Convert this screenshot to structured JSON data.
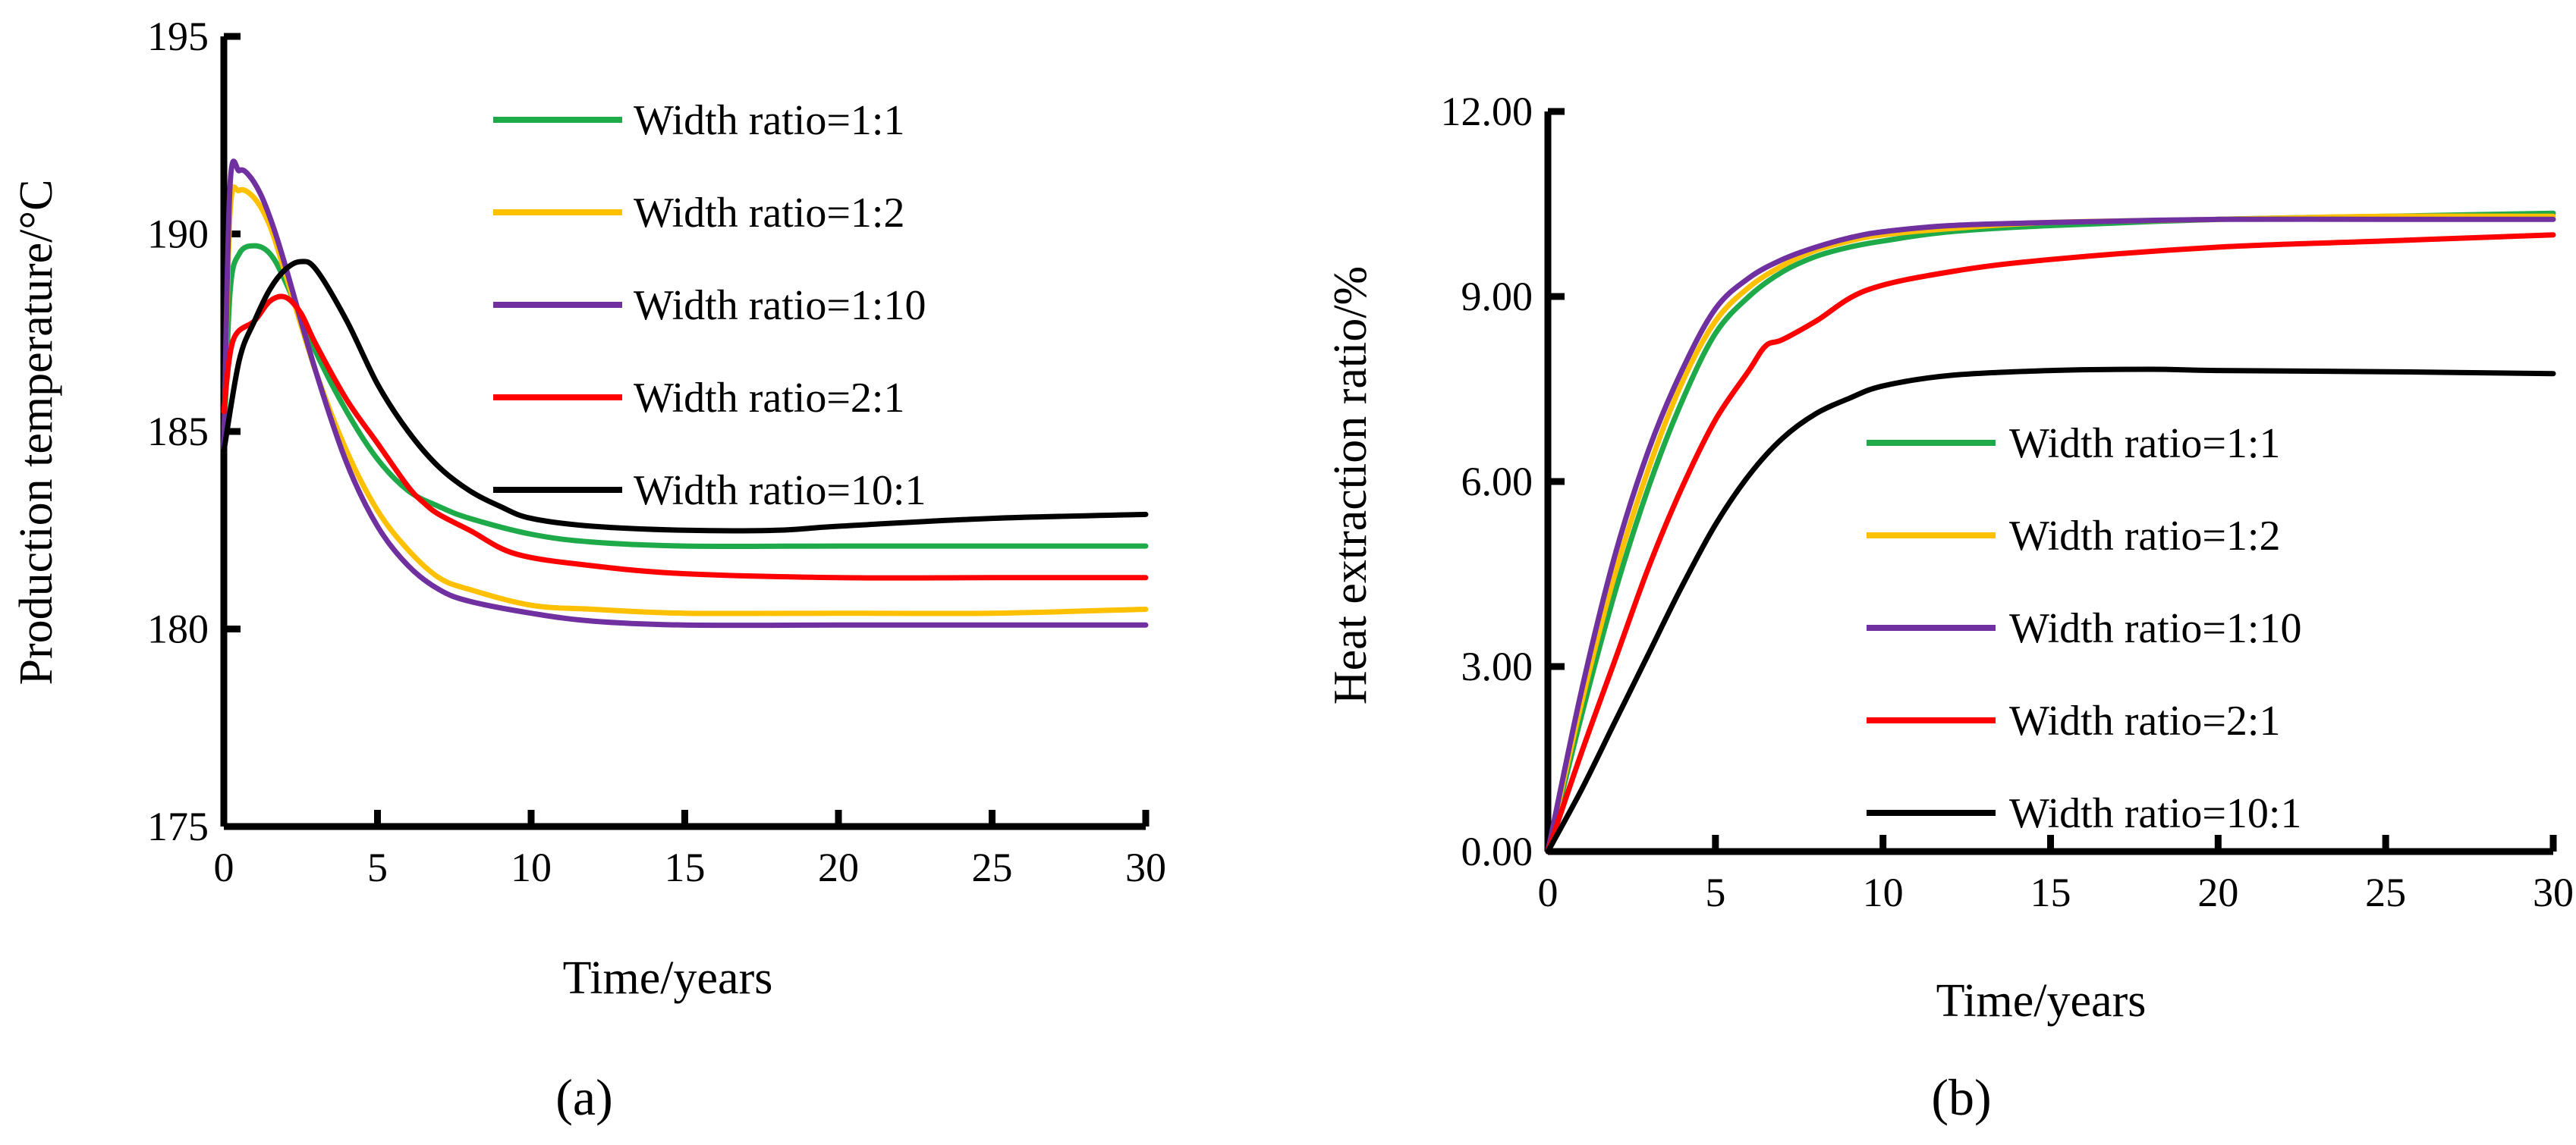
{
  "chart_data": [
    {
      "type": "line",
      "panel": "a",
      "panel_label": "(a)",
      "xlabel": "Time/years",
      "ylabel": "Production temperature/°C",
      "xlim": [
        0,
        30
      ],
      "ylim": [
        175,
        195
      ],
      "xticks": [
        0,
        5,
        10,
        15,
        20,
        25,
        30
      ],
      "yticks": [
        175,
        180,
        185,
        190,
        195
      ],
      "ytick_labels": [
        "175",
        "180",
        "185",
        "190",
        "195"
      ],
      "legend_position": "top-right",
      "series": [
        {
          "name": "Width ratio=1:1",
          "color": "#1faa4a",
          "x": [
            0,
            0.2,
            0.5,
            1,
            1.5,
            2,
            3,
            4,
            5,
            6,
            7,
            8,
            10,
            12,
            15,
            20,
            25,
            30
          ],
          "y": [
            184.5,
            188.5,
            189.5,
            189.7,
            189.5,
            188.8,
            187,
            185.5,
            184.3,
            183.5,
            183.1,
            182.8,
            182.4,
            182.2,
            182.1,
            182.1,
            182.1,
            182.1
          ]
        },
        {
          "name": "Width ratio=1:2",
          "color": "#ffc000",
          "x": [
            0,
            0.2,
            0.5,
            1,
            1.5,
            2,
            3,
            4,
            5,
            6,
            7,
            8,
            10,
            12,
            15,
            20,
            25,
            30
          ],
          "y": [
            184.5,
            190.5,
            191.1,
            190.9,
            190.2,
            189,
            186.5,
            184.5,
            183,
            182,
            181.3,
            181,
            180.6,
            180.5,
            180.4,
            180.4,
            180.4,
            180.5
          ]
        },
        {
          "name": "Width ratio=1:10",
          "color": "#7030a0",
          "x": [
            0,
            0.2,
            0.5,
            0.8,
            1.2,
            1.6,
            2,
            3,
            4,
            5,
            6,
            7,
            8,
            10,
            12,
            15,
            20,
            25,
            30
          ],
          "y": [
            184.5,
            191.2,
            191.6,
            191.5,
            191,
            190.2,
            189.2,
            186.5,
            184.2,
            182.6,
            181.6,
            181,
            180.7,
            180.4,
            180.2,
            180.1,
            180.1,
            180.1,
            180.1
          ]
        },
        {
          "name": "Width ratio=2:1",
          "color": "#ff0000",
          "x": [
            0,
            0.3,
            1,
            1.5,
            2,
            2.5,
            3,
            4,
            5,
            6,
            6.5,
            7,
            8,
            9.5,
            12,
            15,
            20,
            25,
            30
          ],
          "y": [
            185.5,
            187.3,
            187.8,
            188.3,
            188.4,
            188,
            187.2,
            185.8,
            184.7,
            183.6,
            183.2,
            182.9,
            182.5,
            181.9,
            181.6,
            181.4,
            181.3,
            181.3,
            181.3
          ]
        },
        {
          "name": "Width ratio=10:1",
          "color": "#000000",
          "x": [
            0,
            0.5,
            1,
            1.5,
            2,
            2.5,
            3,
            4,
            5,
            6,
            7,
            8,
            9,
            10,
            12,
            15,
            18,
            20,
            25,
            30
          ],
          "y": [
            184.5,
            186.8,
            187.8,
            188.6,
            189.1,
            189.3,
            189.1,
            187.8,
            186.2,
            185,
            184.1,
            183.5,
            183.1,
            182.8,
            182.6,
            182.5,
            182.5,
            182.6,
            182.8,
            182.9
          ]
        }
      ]
    },
    {
      "type": "line",
      "panel": "b",
      "panel_label": "(b)",
      "xlabel": "Time/years",
      "ylabel": "Heat extraction ratio/%",
      "xlim": [
        0,
        30
      ],
      "ylim": [
        0,
        12
      ],
      "xticks": [
        0,
        5,
        10,
        15,
        20,
        25,
        30
      ],
      "yticks": [
        0,
        3,
        6,
        9,
        12
      ],
      "ytick_labels": [
        "0.00",
        "3.00",
        "6.00",
        "9.00",
        "12.00"
      ],
      "legend_position": "lower-right",
      "series": [
        {
          "name": "Width ratio=1:1",
          "color": "#1faa4a",
          "x": [
            0,
            1,
            2,
            3,
            4,
            5,
            6,
            7,
            8,
            9,
            10,
            12,
            15,
            20,
            25,
            30
          ],
          "y": [
            0,
            2.2,
            4.2,
            5.9,
            7.3,
            8.4,
            9.0,
            9.4,
            9.65,
            9.8,
            9.9,
            10.05,
            10.15,
            10.25,
            10.3,
            10.35
          ]
        },
        {
          "name": "Width ratio=1:2",
          "color": "#ffc000",
          "x": [
            0,
            1,
            2,
            3,
            4,
            5,
            6,
            7,
            8,
            9,
            10,
            12,
            15,
            20,
            25,
            30
          ],
          "y": [
            0,
            2.4,
            4.5,
            6.2,
            7.6,
            8.6,
            9.15,
            9.5,
            9.75,
            9.9,
            10.0,
            10.1,
            10.2,
            10.25,
            10.3,
            10.3
          ]
        },
        {
          "name": "Width ratio=1:10",
          "color": "#7030a0",
          "x": [
            0,
            1,
            2,
            3,
            4,
            5,
            6,
            7,
            8,
            9,
            10,
            12,
            15,
            20,
            25,
            30
          ],
          "y": [
            0,
            2.6,
            4.8,
            6.5,
            7.8,
            8.8,
            9.3,
            9.6,
            9.8,
            9.95,
            10.05,
            10.15,
            10.2,
            10.25,
            10.25,
            10.25
          ]
        },
        {
          "name": "Width ratio=2:1",
          "color": "#ff0000",
          "x": [
            0,
            1,
            2,
            3,
            4,
            5,
            6,
            6.5,
            7,
            8,
            9.5,
            12,
            15,
            20,
            25,
            30
          ],
          "y": [
            0,
            1.6,
            3.1,
            4.6,
            5.9,
            7.0,
            7.8,
            8.2,
            8.3,
            8.6,
            9.1,
            9.4,
            9.6,
            9.8,
            9.9,
            10.0
          ]
        },
        {
          "name": "Width ratio=10:1",
          "color": "#000000",
          "x": [
            0,
            1,
            2,
            3,
            4,
            5,
            6,
            7,
            8,
            9,
            10,
            12,
            15,
            18,
            20,
            25,
            30
          ],
          "y": [
            0,
            1.0,
            2.1,
            3.2,
            4.3,
            5.3,
            6.1,
            6.7,
            7.1,
            7.35,
            7.55,
            7.72,
            7.8,
            7.82,
            7.8,
            7.78,
            7.75
          ]
        }
      ]
    }
  ]
}
